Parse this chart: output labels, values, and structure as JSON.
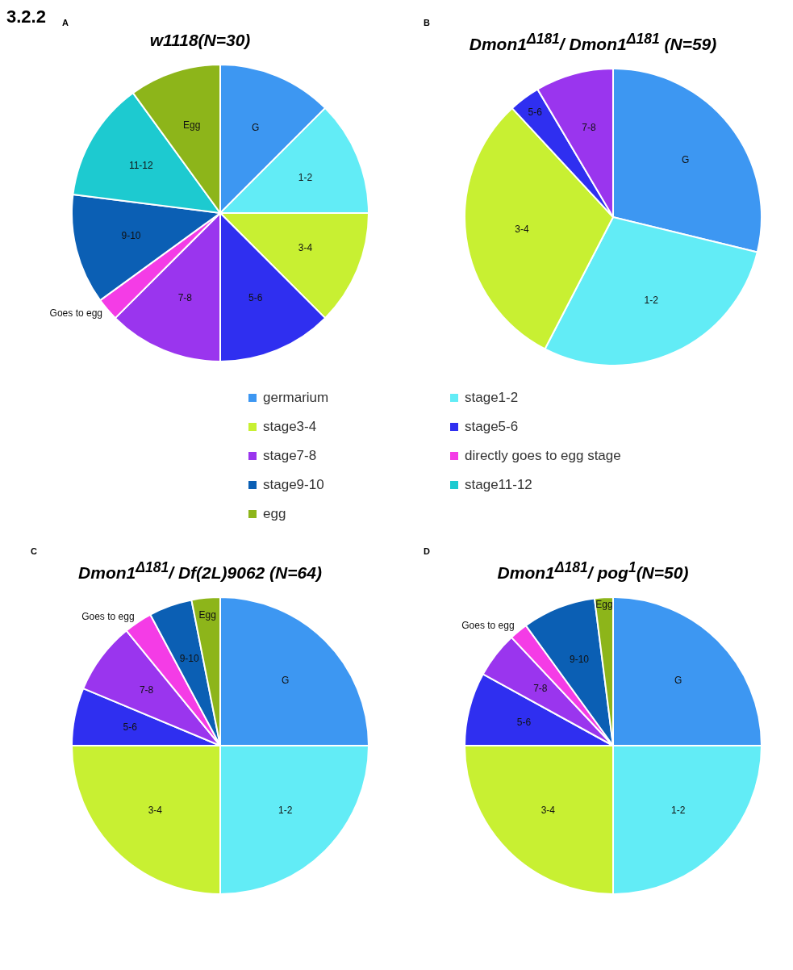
{
  "chart_data": [
    {
      "type": "pie",
      "title": "w1118(N=30)",
      "annotations": [
        "3.2.2",
        "A"
      ],
      "legend": "bottom",
      "categories": [
        "germarium",
        "stage1-2",
        "stage3-4",
        "stage5-6",
        "stage7-8",
        "directly goes to egg stage",
        "stage9-10",
        "stage11-12",
        "egg"
      ],
      "values": [
        12.5,
        12.5,
        12.5,
        12.5,
        12.5,
        2.5,
        12,
        13,
        10
      ],
      "colors": [
        "#3d97f2",
        "#62ecf6",
        "#c8f032",
        "#2f2ff0",
        "#9a35ee",
        "#f43ce6",
        "#0b5fb4",
        "#1dcad0",
        "#8db51a"
      ],
      "value_labels": [
        "G",
        "1-2",
        "3-4",
        "5-6",
        "7-8",
        "Goes to egg",
        "9-10",
        "11-12",
        "Egg"
      ]
    },
    {
      "type": "pie",
      "title": "Dmon1$^{Δ181}$/ Dmon1$^{Δ181}$ (N=59)",
      "annotations": [
        "B"
      ],
      "values": [
        28.8,
        28.8,
        30.5,
        3.4,
        8.5
      ],
      "colors": [
        "#3d97f2",
        "#62ecf6",
        "#c8f032",
        "#2f2ff0",
        "#9a35ee"
      ],
      "value_labels": [
        "G",
        "1-2",
        "3-4",
        "5-6",
        "7-8"
      ]
    },
    {
      "type": "pie",
      "title": "Dmon1$^{Δ181}$/ Df(2L)9062 (N=64)",
      "annotations": [
        "C"
      ],
      "values": [
        25,
        25,
        25,
        6.3,
        7.8,
        3.1,
        4.7,
        3.1
      ],
      "colors": [
        "#3d97f2",
        "#62ecf6",
        "#c8f032",
        "#2f2ff0",
        "#9a35ee",
        "#f43ce6",
        "#0b5fb4",
        "#8db51a"
      ],
      "value_labels": [
        "G",
        "1-2",
        "3-4",
        "5-6",
        "7-8",
        "Goes to egg",
        "9-10",
        "Egg"
      ]
    },
    {
      "type": "pie",
      "title": "Dmon1$^{Δ181}$/ pog$^{1}$(N=50)",
      "annotations": [
        "D"
      ],
      "values": [
        25,
        25,
        25,
        8,
        5,
        2,
        8,
        2
      ],
      "colors": [
        "#3d97f2",
        "#62ecf6",
        "#c8f032",
        "#2f2ff0",
        "#9a35ee",
        "#f43ce6",
        "#0b5fb4",
        "#8db51a"
      ],
      "value_labels": [
        "G",
        "1-2",
        "3-4",
        "5-6",
        "7-8",
        "Goes to egg",
        "9-10",
        "Egg"
      ]
    }
  ]
}
